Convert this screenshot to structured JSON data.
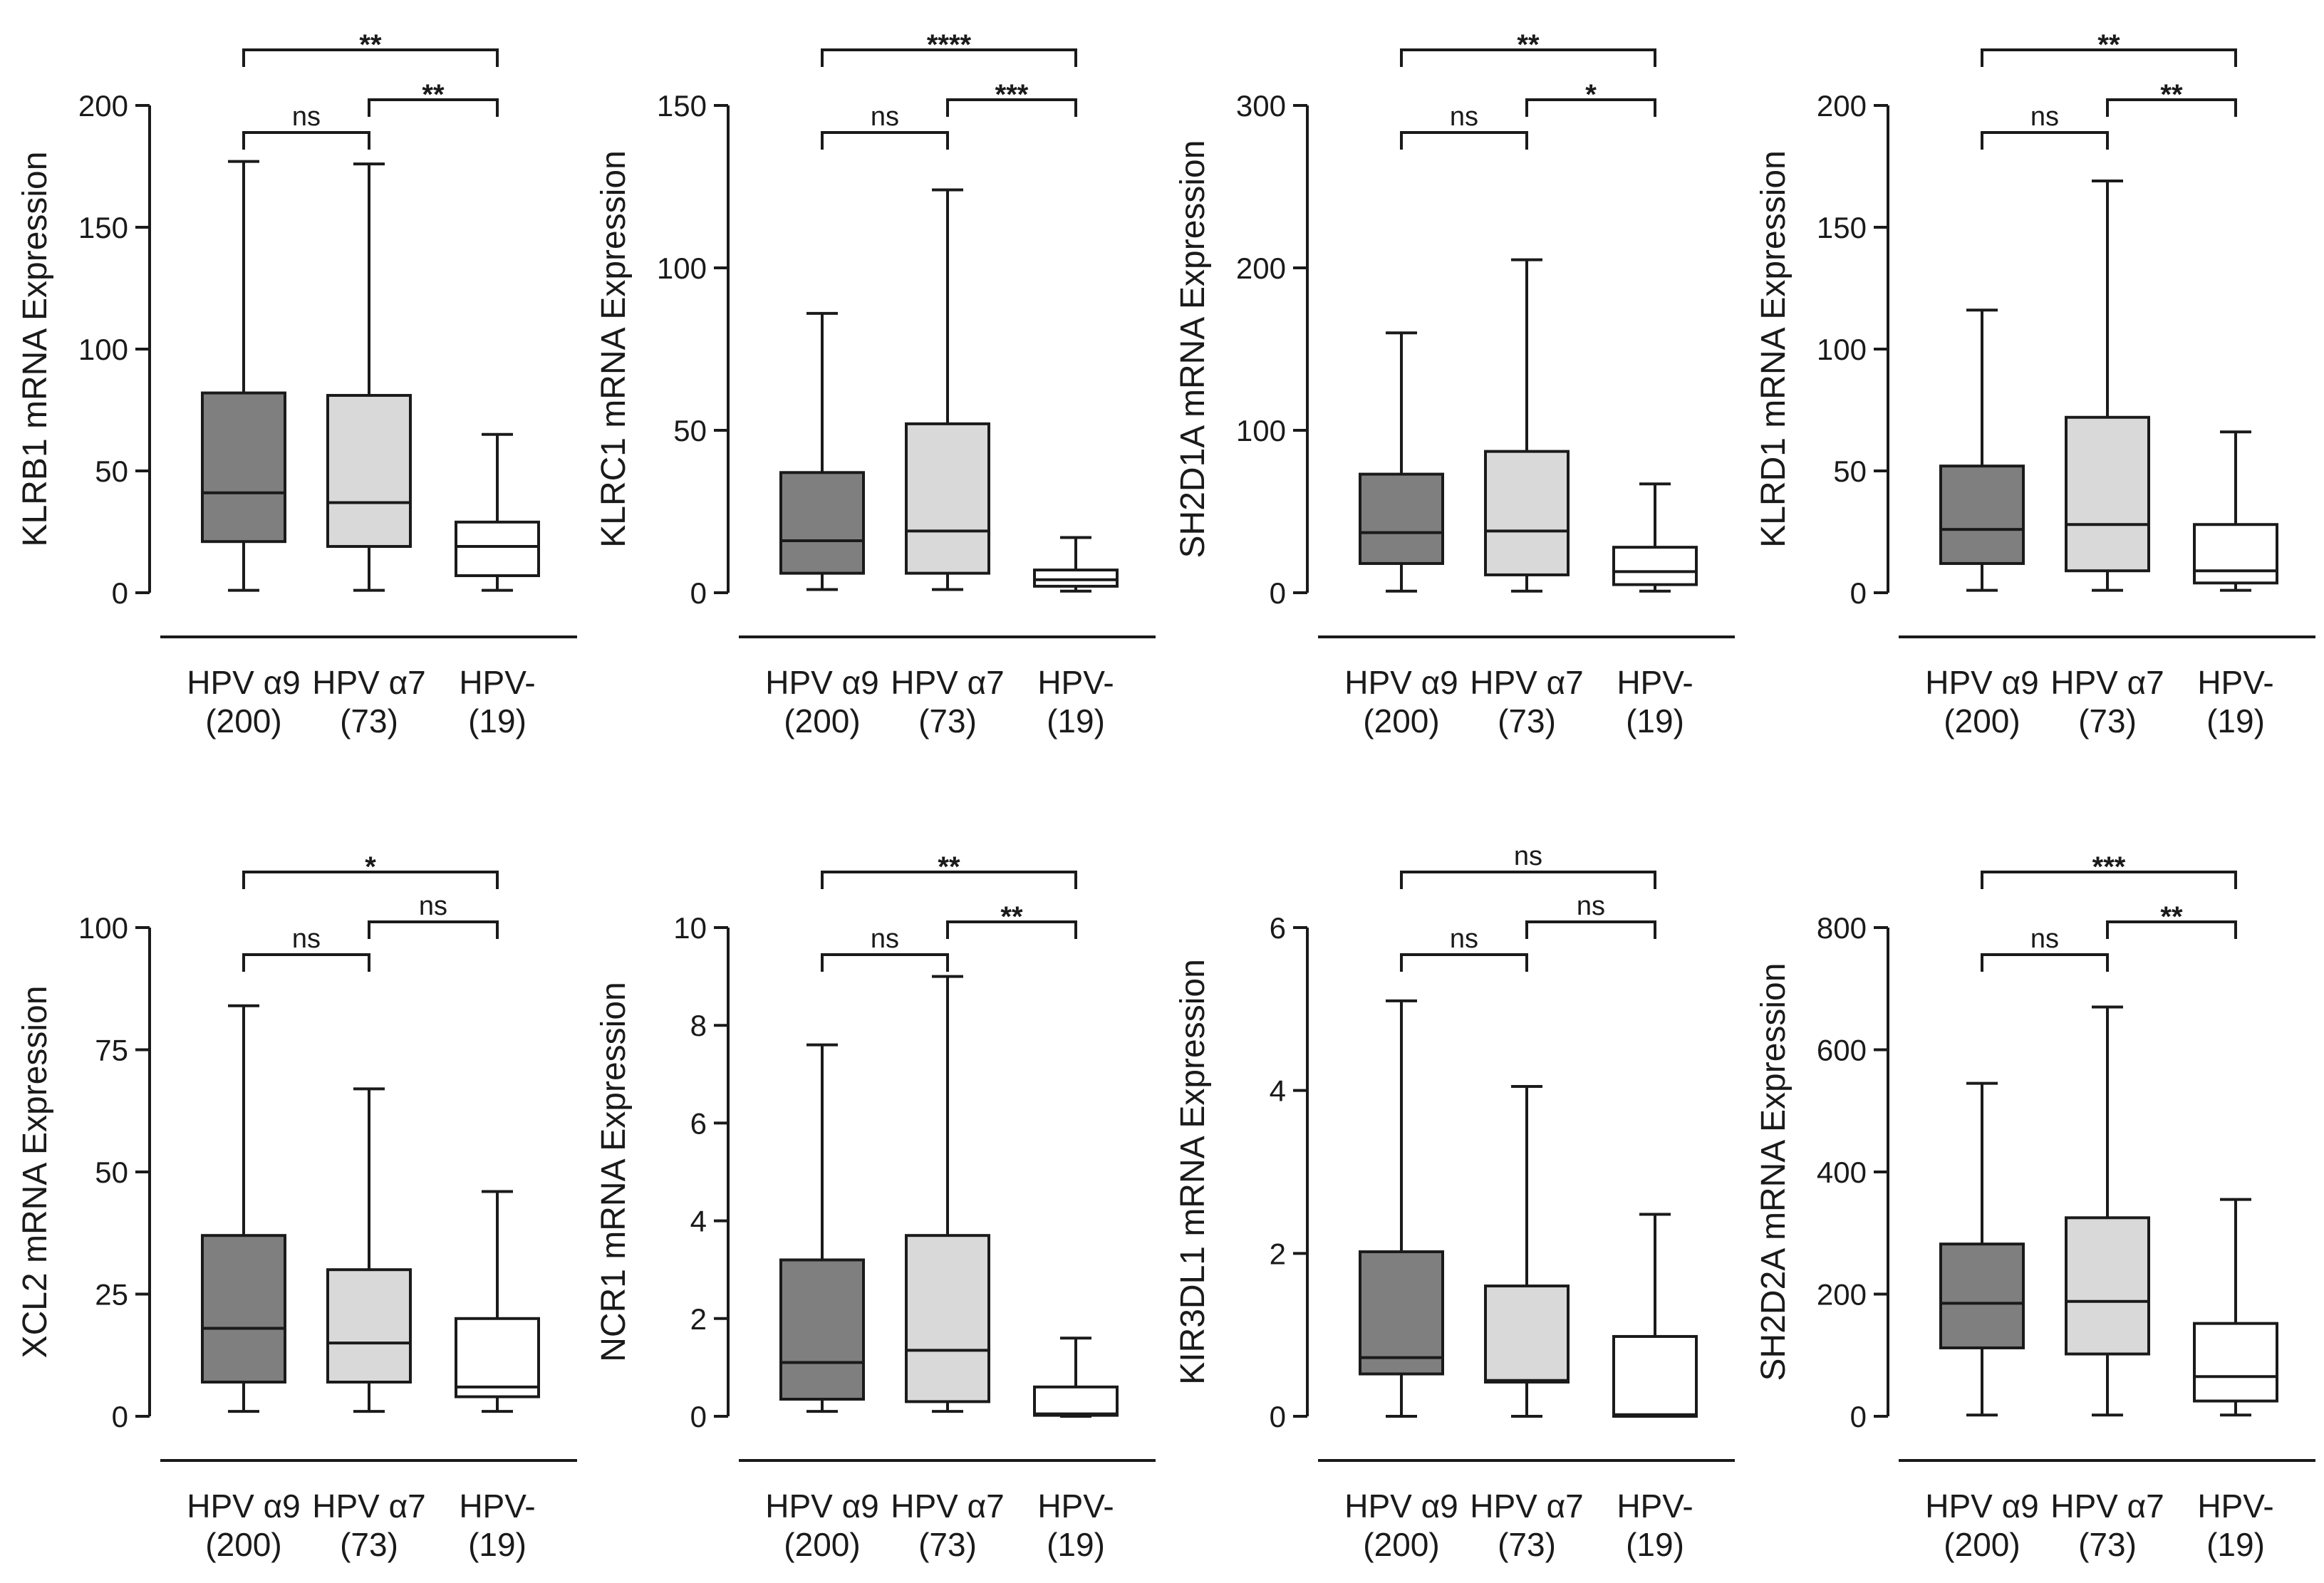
{
  "chart_data": [
    {
      "type": "box",
      "ylabel": "KLRB1 mRNA Expression",
      "ylim": [
        0,
        200
      ],
      "yticks": [
        0,
        50,
        100,
        150,
        200
      ],
      "groups": [
        {
          "label": "HPV α9",
          "n": "(200)",
          "min": 1,
          "q1": 21,
          "median": 41,
          "q3": 82,
          "max": 177,
          "fill": "#7f7f7f"
        },
        {
          "label": "HPV α7",
          "n": "(73)",
          "min": 1,
          "q1": 19,
          "median": 37,
          "q3": 81,
          "max": 176,
          "fill": "#d9d9d9"
        },
        {
          "label": "HPV-",
          "n": "(19)",
          "min": 1,
          "q1": 7,
          "median": 19,
          "q3": 29,
          "max": 65,
          "fill": "#ffffff"
        }
      ],
      "comparisons": [
        {
          "from": 0,
          "to": 2,
          "label": "**",
          "level": 3
        },
        {
          "from": 1,
          "to": 2,
          "label": "**",
          "level": 2
        },
        {
          "from": 0,
          "to": 1,
          "label": "ns",
          "level": 1
        }
      ]
    },
    {
      "type": "box",
      "ylabel": "KLRC1 mRNA Expression",
      "ylim": [
        0,
        150
      ],
      "yticks": [
        0,
        50,
        100,
        150
      ],
      "groups": [
        {
          "label": "HPV α9",
          "n": "(200)",
          "min": 1,
          "q1": 6,
          "median": 16,
          "q3": 37,
          "max": 86,
          "fill": "#7f7f7f"
        },
        {
          "label": "HPV α7",
          "n": "(73)",
          "min": 1,
          "q1": 6,
          "median": 19,
          "q3": 52,
          "max": 124,
          "fill": "#d9d9d9"
        },
        {
          "label": "HPV-",
          "n": "(19)",
          "min": 0.5,
          "q1": 2,
          "median": 4,
          "q3": 7,
          "max": 17,
          "fill": "#ffffff"
        }
      ],
      "comparisons": [
        {
          "from": 0,
          "to": 2,
          "label": "****",
          "level": 3
        },
        {
          "from": 1,
          "to": 2,
          "label": "***",
          "level": 2
        },
        {
          "from": 0,
          "to": 1,
          "label": "ns",
          "level": 1
        }
      ]
    },
    {
      "type": "box",
      "ylabel": "SH2D1A mRNA Expression",
      "ylim": [
        0,
        300
      ],
      "yticks": [
        0,
        100,
        200,
        300
      ],
      "groups": [
        {
          "label": "HPV α9",
          "n": "(200)",
          "min": 1,
          "q1": 18,
          "median": 37,
          "q3": 73,
          "max": 160,
          "fill": "#7f7f7f"
        },
        {
          "label": "HPV α7",
          "n": "(73)",
          "min": 1,
          "q1": 11,
          "median": 38,
          "q3": 87,
          "max": 205,
          "fill": "#d9d9d9"
        },
        {
          "label": "HPV-",
          "n": "(19)",
          "min": 1,
          "q1": 5,
          "median": 13,
          "q3": 28,
          "max": 67,
          "fill": "#ffffff"
        }
      ],
      "comparisons": [
        {
          "from": 0,
          "to": 2,
          "label": "**",
          "level": 3
        },
        {
          "from": 1,
          "to": 2,
          "label": "*",
          "level": 2
        },
        {
          "from": 0,
          "to": 1,
          "label": "ns",
          "level": 1
        }
      ]
    },
    {
      "type": "box",
      "ylabel": "KLRD1 mRNA Expression",
      "ylim": [
        0,
        200
      ],
      "yticks": [
        0,
        50,
        100,
        150,
        200
      ],
      "groups": [
        {
          "label": "HPV α9",
          "n": "(200)",
          "min": 1,
          "q1": 12,
          "median": 26,
          "q3": 52,
          "max": 116,
          "fill": "#7f7f7f"
        },
        {
          "label": "HPV α7",
          "n": "(73)",
          "min": 1,
          "q1": 9,
          "median": 28,
          "q3": 72,
          "max": 169,
          "fill": "#d9d9d9"
        },
        {
          "label": "HPV-",
          "n": "(19)",
          "min": 1,
          "q1": 4,
          "median": 9,
          "q3": 28,
          "max": 66,
          "fill": "#ffffff"
        }
      ],
      "comparisons": [
        {
          "from": 0,
          "to": 2,
          "label": "**",
          "level": 3
        },
        {
          "from": 1,
          "to": 2,
          "label": "**",
          "level": 2
        },
        {
          "from": 0,
          "to": 1,
          "label": "ns",
          "level": 1
        }
      ]
    },
    {
      "type": "box",
      "ylabel": "XCL2 mRNA Expression",
      "ylim": [
        0,
        100
      ],
      "yticks": [
        0,
        25,
        50,
        75,
        100
      ],
      "groups": [
        {
          "label": "HPV α9",
          "n": "(200)",
          "min": 1,
          "q1": 7,
          "median": 18,
          "q3": 37,
          "max": 84,
          "fill": "#7f7f7f"
        },
        {
          "label": "HPV α7",
          "n": "(73)",
          "min": 1,
          "q1": 7,
          "median": 15,
          "q3": 30,
          "max": 67,
          "fill": "#d9d9d9"
        },
        {
          "label": "HPV-",
          "n": "(19)",
          "min": 1,
          "q1": 4,
          "median": 6,
          "q3": 20,
          "max": 46,
          "fill": "#ffffff"
        }
      ],
      "comparisons": [
        {
          "from": 0,
          "to": 2,
          "label": "*",
          "level": 3
        },
        {
          "from": 1,
          "to": 2,
          "label": "ns",
          "level": 2
        },
        {
          "from": 0,
          "to": 1,
          "label": "ns",
          "level": 1
        }
      ]
    },
    {
      "type": "box",
      "ylabel": "NCR1 mRNA Expression",
      "ylim": [
        0,
        10
      ],
      "yticks": [
        0,
        2,
        4,
        6,
        8,
        10
      ],
      "groups": [
        {
          "label": "HPV α9",
          "n": "(200)",
          "min": 0.1,
          "q1": 0.35,
          "median": 1.1,
          "q3": 3.2,
          "max": 7.6,
          "fill": "#7f7f7f"
        },
        {
          "label": "HPV α7",
          "n": "(73)",
          "min": 0.1,
          "q1": 0.3,
          "median": 1.35,
          "q3": 3.7,
          "max": 9.0,
          "fill": "#d9d9d9"
        },
        {
          "label": "HPV-",
          "n": "(19)",
          "min": 0,
          "q1": 0.02,
          "median": 0.05,
          "q3": 0.6,
          "max": 1.6,
          "fill": "#ffffff"
        }
      ],
      "comparisons": [
        {
          "from": 0,
          "to": 2,
          "label": "**",
          "level": 3
        },
        {
          "from": 1,
          "to": 2,
          "label": "**",
          "level": 2
        },
        {
          "from": 0,
          "to": 1,
          "label": "ns",
          "level": 1
        }
      ]
    },
    {
      "type": "box",
      "ylabel": "KIR3DL1 mRNA Expression",
      "ylim": [
        0,
        6
      ],
      "yticks": [
        0,
        2,
        4,
        6
      ],
      "groups": [
        {
          "label": "HPV α9",
          "n": "(200)",
          "min": 0,
          "q1": 0.52,
          "median": 0.72,
          "q3": 2.02,
          "max": 5.1,
          "fill": "#7f7f7f"
        },
        {
          "label": "HPV α7",
          "n": "(73)",
          "min": 0,
          "q1": 0.42,
          "median": 0.44,
          "q3": 1.6,
          "max": 4.05,
          "fill": "#d9d9d9"
        },
        {
          "label": "HPV-",
          "n": "(19)",
          "min": 0,
          "q1": 0,
          "median": 0.02,
          "q3": 0.98,
          "max": 2.48,
          "fill": "#ffffff"
        }
      ],
      "comparisons": [
        {
          "from": 0,
          "to": 2,
          "label": "ns",
          "level": 3
        },
        {
          "from": 1,
          "to": 2,
          "label": "ns",
          "level": 2
        },
        {
          "from": 0,
          "to": 1,
          "label": "ns",
          "level": 1
        }
      ]
    },
    {
      "type": "box",
      "ylabel": "SH2D2A mRNA Expression",
      "ylim": [
        0,
        800
      ],
      "yticks": [
        0,
        200,
        400,
        600,
        800
      ],
      "groups": [
        {
          "label": "HPV α9",
          "n": "(200)",
          "min": 2,
          "q1": 112,
          "median": 185,
          "q3": 282,
          "max": 545,
          "fill": "#7f7f7f"
        },
        {
          "label": "HPV α7",
          "n": "(73)",
          "min": 2,
          "q1": 102,
          "median": 188,
          "q3": 325,
          "max": 670,
          "fill": "#d9d9d9"
        },
        {
          "label": "HPV-",
          "n": "(19)",
          "min": 2,
          "q1": 25,
          "median": 65,
          "q3": 152,
          "max": 355,
          "fill": "#ffffff"
        }
      ],
      "comparisons": [
        {
          "from": 0,
          "to": 2,
          "label": "***",
          "level": 3
        },
        {
          "from": 1,
          "to": 2,
          "label": "**",
          "level": 2
        },
        {
          "from": 0,
          "to": 1,
          "label": "ns",
          "level": 1
        }
      ]
    }
  ]
}
